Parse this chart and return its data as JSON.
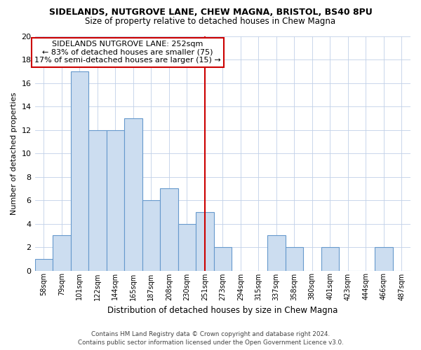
{
  "title": "SIDELANDS, NUTGROVE LANE, CHEW MAGNA, BRISTOL, BS40 8PU",
  "subtitle": "Size of property relative to detached houses in Chew Magna",
  "xlabel": "Distribution of detached houses by size in Chew Magna",
  "ylabel": "Number of detached properties",
  "bar_color": "#ccddf0",
  "bar_edge_color": "#6699cc",
  "categories": [
    "58sqm",
    "79sqm",
    "101sqm",
    "122sqm",
    "144sqm",
    "165sqm",
    "187sqm",
    "208sqm",
    "230sqm",
    "251sqm",
    "273sqm",
    "294sqm",
    "315sqm",
    "337sqm",
    "358sqm",
    "380sqm",
    "401sqm",
    "423sqm",
    "444sqm",
    "466sqm",
    "487sqm"
  ],
  "values": [
    1,
    3,
    17,
    12,
    12,
    13,
    6,
    7,
    4,
    5,
    2,
    0,
    0,
    3,
    2,
    0,
    2,
    0,
    0,
    2,
    0
  ],
  "ylim": [
    0,
    20
  ],
  "yticks": [
    0,
    2,
    4,
    6,
    8,
    10,
    12,
    14,
    16,
    18,
    20
  ],
  "vline_idx": 9,
  "vline_color": "#cc0000",
  "annotation_title": "SIDELANDS NUTGROVE LANE: 252sqm",
  "annotation_line1": "← 83% of detached houses are smaller (75)",
  "annotation_line2": "17% of semi-detached houses are larger (15) →",
  "footer1": "Contains HM Land Registry data © Crown copyright and database right 2024.",
  "footer2": "Contains public sector information licensed under the Open Government Licence v3.0.",
  "bg_color": "#ffffff",
  "plot_bg_color": "#ffffff",
  "grid_color": "#c0d0e8"
}
